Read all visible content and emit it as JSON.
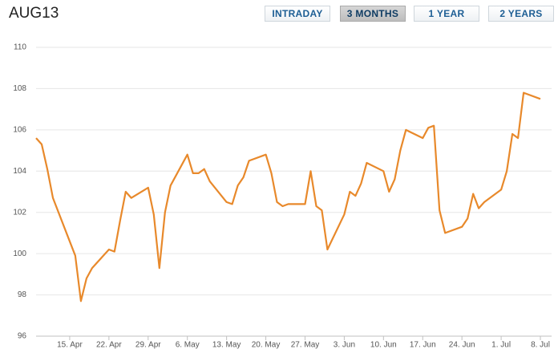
{
  "header": {
    "title": "AUG13"
  },
  "buttons": [
    {
      "label": "INTRADAY",
      "active": false
    },
    {
      "label": "3 MONTHS",
      "active": true
    },
    {
      "label": "1 YEAR",
      "active": false
    },
    {
      "label": "2 YEARS",
      "active": false
    }
  ],
  "chart_data": {
    "type": "line",
    "x": [
      "9. Apr",
      "10. Apr",
      "11. Apr",
      "12. Apr",
      "15. Apr",
      "16. Apr",
      "17. Apr",
      "18. Apr",
      "19. Apr",
      "22. Apr",
      "23. Apr",
      "24. Apr",
      "25. Apr",
      "26. Apr",
      "29. Apr",
      "30. Apr",
      "1. May",
      "2. May",
      "3. May",
      "6. May",
      "7. May",
      "8. May",
      "9. May",
      "10. May",
      "13. May",
      "14. May",
      "15. May",
      "16. May",
      "17. May",
      "20. May",
      "21. May",
      "22. May",
      "23. May",
      "24. May",
      "27. May",
      "28. May",
      "29. May",
      "30. May",
      "31. May",
      "3. Jun",
      "4. Jun",
      "5. Jun",
      "6. Jun",
      "7. Jun",
      "10. Jun",
      "11. Jun",
      "12. Jun",
      "13. Jun",
      "14. Jun",
      "17. Jun",
      "18. Jun",
      "19. Jun",
      "20. Jun",
      "21. Jun",
      "24. Jun",
      "25. Jun",
      "26. Jun",
      "27. Jun",
      "28. Jun",
      "1. Jul",
      "2. Jul",
      "3. Jul",
      "4. Jul",
      "5. Jul",
      "8. Jul"
    ],
    "series": [
      {
        "color": "#e8892b",
        "values": [
          105.6,
          105.3,
          104.1,
          102.7,
          100.6,
          99.9,
          97.7,
          98.8,
          99.3,
          100.2,
          100.1,
          101.6,
          103.0,
          102.7,
          103.2,
          101.9,
          99.3,
          102.0,
          103.3,
          104.8,
          103.9,
          103.9,
          104.1,
          103.5,
          102.5,
          102.4,
          103.3,
          103.7,
          104.5,
          104.8,
          103.9,
          102.5,
          102.3,
          102.4,
          102.4,
          104.0,
          102.3,
          102.1,
          100.2,
          101.9,
          103.0,
          102.8,
          103.4,
          104.4,
          104.0,
          103.0,
          103.6,
          105.0,
          106.0,
          105.6,
          106.1,
          106.2,
          102.1,
          101.0,
          101.3,
          101.7,
          102.9,
          102.2,
          102.5,
          103.1,
          104.0,
          105.8,
          105.6,
          107.8,
          107.5
        ]
      }
    ],
    "xlim": [
      "9. Apr",
      "10. Jul"
    ],
    "xticks": [
      "15. Apr",
      "22. Apr",
      "29. Apr",
      "6. May",
      "13. May",
      "20. May",
      "27. May",
      "3. Jun",
      "10. Jun",
      "17. Jun",
      "24. Jun",
      "1. Jul",
      "8. Jul"
    ],
    "ylim": [
      96,
      110
    ],
    "yticks": [
      96,
      98,
      100,
      102,
      104,
      106,
      108,
      110
    ],
    "grid": true
  }
}
